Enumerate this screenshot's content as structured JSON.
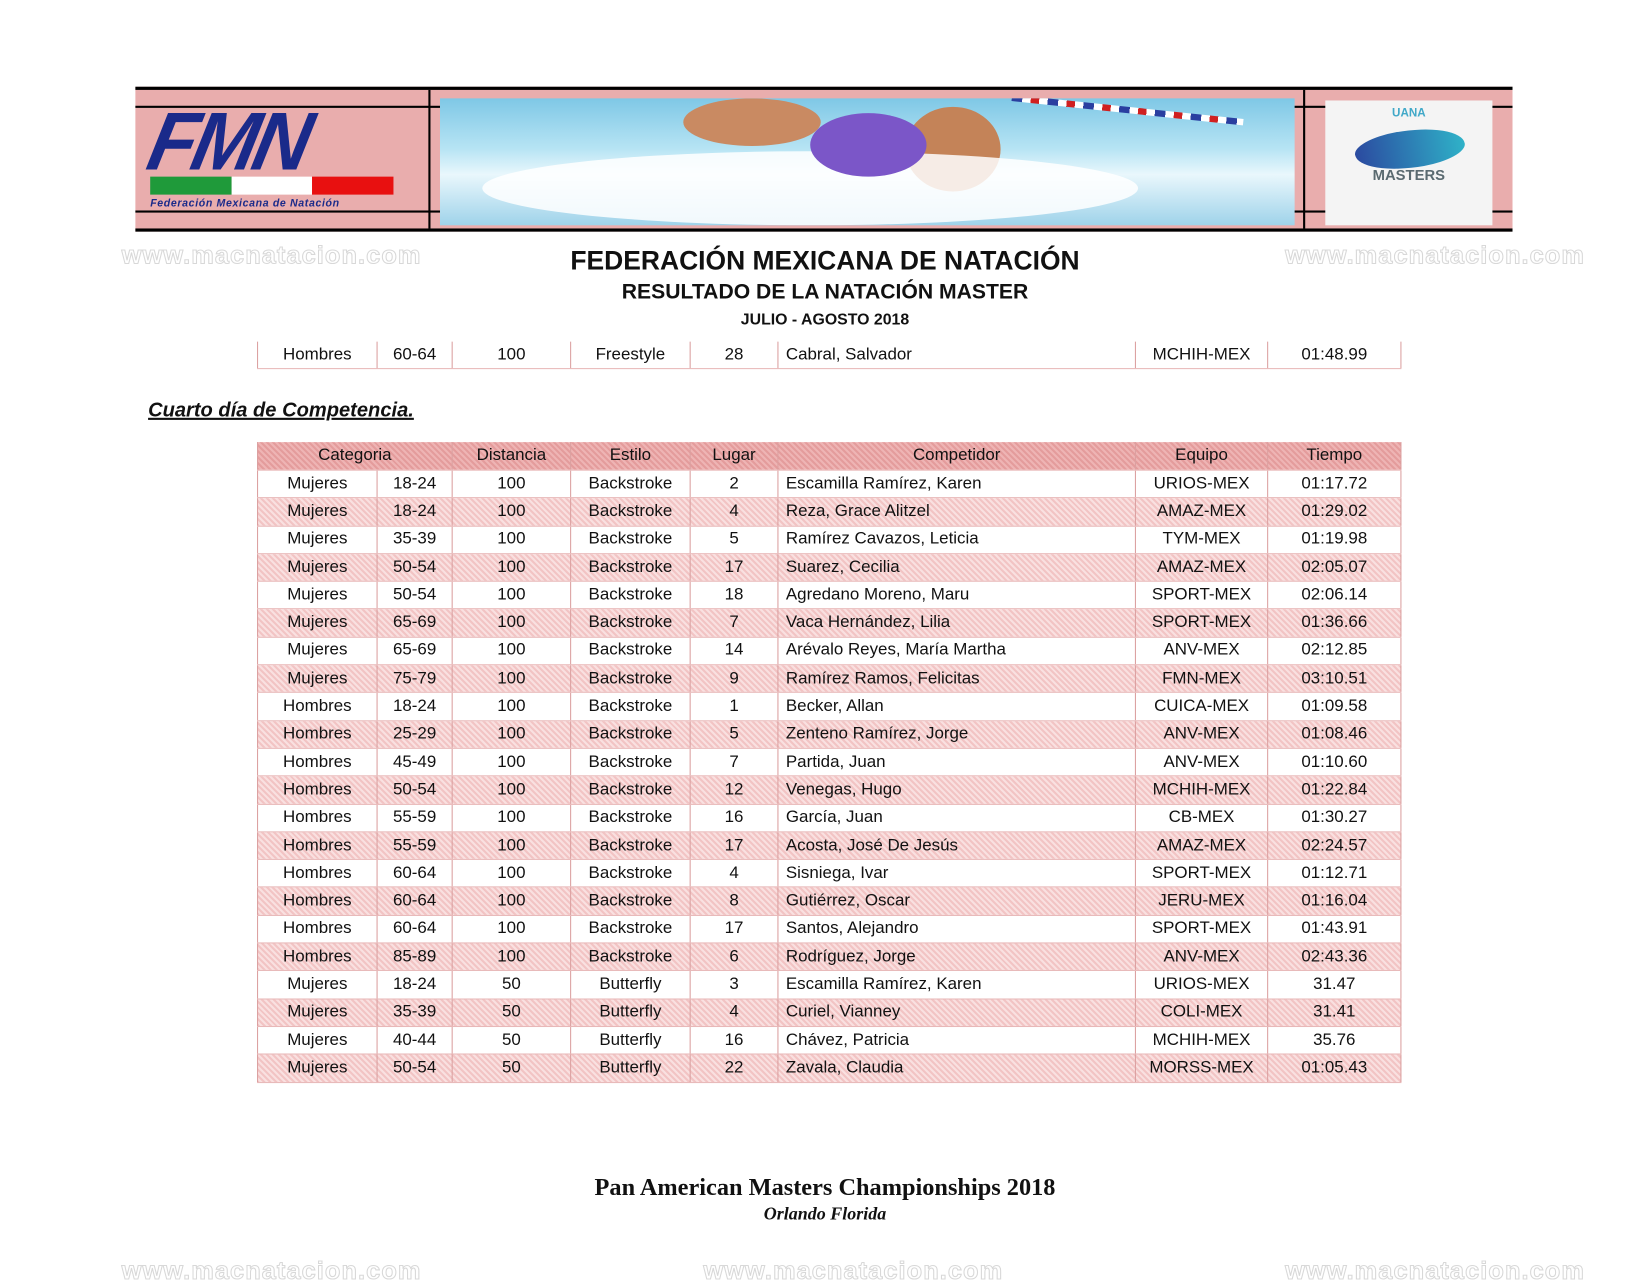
{
  "banner": {
    "logo_text": "FMN",
    "logo_subtitle": "Federación Mexicana de Natación",
    "right_logo_top": "UANA",
    "right_logo_text": "MASTERS",
    "flag_colors": [
      "#1f9a3a",
      "#ffffff",
      "#e81010"
    ]
  },
  "watermark": "www.macnatacion.com",
  "header": {
    "title": "FEDERACIÓN MEXICANA DE NATACIÓN",
    "subtitle": "RESULTADO DE LA NATACIÓN MASTER",
    "date": "JULIO - AGOSTO 2018"
  },
  "carry_row": [
    "Hombres",
    "60-64",
    "100",
    "Freestyle",
    "28",
    "Cabral, Salvador",
    "MCHIH-MEX",
    "01:48.99"
  ],
  "section_title": "Cuarto día de Competencia.",
  "table": {
    "columns": [
      "Categoria",
      "Distancia",
      "Estilo",
      "Lugar",
      "Competidor",
      "Equipo",
      "Tiempo"
    ],
    "rows": [
      [
        "Mujeres",
        "18-24",
        "100",
        "Backstroke",
        "2",
        "Escamilla Ramírez, Karen",
        "URIOS-MEX",
        "01:17.72"
      ],
      [
        "Mujeres",
        "18-24",
        "100",
        "Backstroke",
        "4",
        "Reza, Grace Alitzel",
        "AMAZ-MEX",
        "01:29.02"
      ],
      [
        "Mujeres",
        "35-39",
        "100",
        "Backstroke",
        "5",
        "Ramírez Cavazos, Leticia",
        "TYM-MEX",
        "01:19.98"
      ],
      [
        "Mujeres",
        "50-54",
        "100",
        "Backstroke",
        "17",
        "Suarez, Cecilia",
        "AMAZ-MEX",
        "02:05.07"
      ],
      [
        "Mujeres",
        "50-54",
        "100",
        "Backstroke",
        "18",
        "Agredano Moreno, Maru",
        "SPORT-MEX",
        "02:06.14"
      ],
      [
        "Mujeres",
        "65-69",
        "100",
        "Backstroke",
        "7",
        "Vaca Hernández, Lilia",
        "SPORT-MEX",
        "01:36.66"
      ],
      [
        "Mujeres",
        "65-69",
        "100",
        "Backstroke",
        "14",
        "Arévalo Reyes, María Martha",
        "ANV-MEX",
        "02:12.85"
      ],
      [
        "Mujeres",
        "75-79",
        "100",
        "Backstroke",
        "9",
        "Ramírez Ramos, Felicitas",
        "FMN-MEX",
        "03:10.51"
      ],
      [
        "Hombres",
        "18-24",
        "100",
        "Backstroke",
        "1",
        "Becker, Allan",
        "CUICA-MEX",
        "01:09.58"
      ],
      [
        "Hombres",
        "25-29",
        "100",
        "Backstroke",
        "5",
        "Zenteno Ramírez, Jorge",
        "ANV-MEX",
        "01:08.46"
      ],
      [
        "Hombres",
        "45-49",
        "100",
        "Backstroke",
        "7",
        "Partida, Juan",
        "ANV-MEX",
        "01:10.60"
      ],
      [
        "Hombres",
        "50-54",
        "100",
        "Backstroke",
        "12",
        "Venegas, Hugo",
        "MCHIH-MEX",
        "01:22.84"
      ],
      [
        "Hombres",
        "55-59",
        "100",
        "Backstroke",
        "16",
        "García, Juan",
        "CB-MEX",
        "01:30.27"
      ],
      [
        "Hombres",
        "55-59",
        "100",
        "Backstroke",
        "17",
        "Acosta, José De Jesús",
        "AMAZ-MEX",
        "02:24.57"
      ],
      [
        "Hombres",
        "60-64",
        "100",
        "Backstroke",
        "4",
        "Sisniega, Ivar",
        "SPORT-MEX",
        "01:12.71"
      ],
      [
        "Hombres",
        "60-64",
        "100",
        "Backstroke",
        "8",
        "Gutiérrez, Oscar",
        "JERU-MEX",
        "01:16.04"
      ],
      [
        "Hombres",
        "60-64",
        "100",
        "Backstroke",
        "17",
        "Santos, Alejandro",
        "SPORT-MEX",
        "01:43.91"
      ],
      [
        "Hombres",
        "85-89",
        "100",
        "Backstroke",
        "6",
        "Rodríguez, Jorge",
        "ANV-MEX",
        "02:43.36"
      ],
      [
        "Mujeres",
        "18-24",
        "50",
        "Butterfly",
        "3",
        "Escamilla Ramírez, Karen",
        "URIOS-MEX",
        "31.47"
      ],
      [
        "Mujeres",
        "35-39",
        "50",
        "Butterfly",
        "4",
        "Curiel, Vianney",
        "COLI-MEX",
        "31.41"
      ],
      [
        "Mujeres",
        "40-44",
        "50",
        "Butterfly",
        "16",
        "Chávez, Patricia",
        "MCHIH-MEX",
        "35.76"
      ],
      [
        "Mujeres",
        "50-54",
        "50",
        "Butterfly",
        "22",
        "Zavala, Claudia",
        "MORSS-MEX",
        "01:05.43"
      ]
    ]
  },
  "footer": {
    "title": "Pan American Masters Championships 2018",
    "location": "Orlando Florida"
  }
}
